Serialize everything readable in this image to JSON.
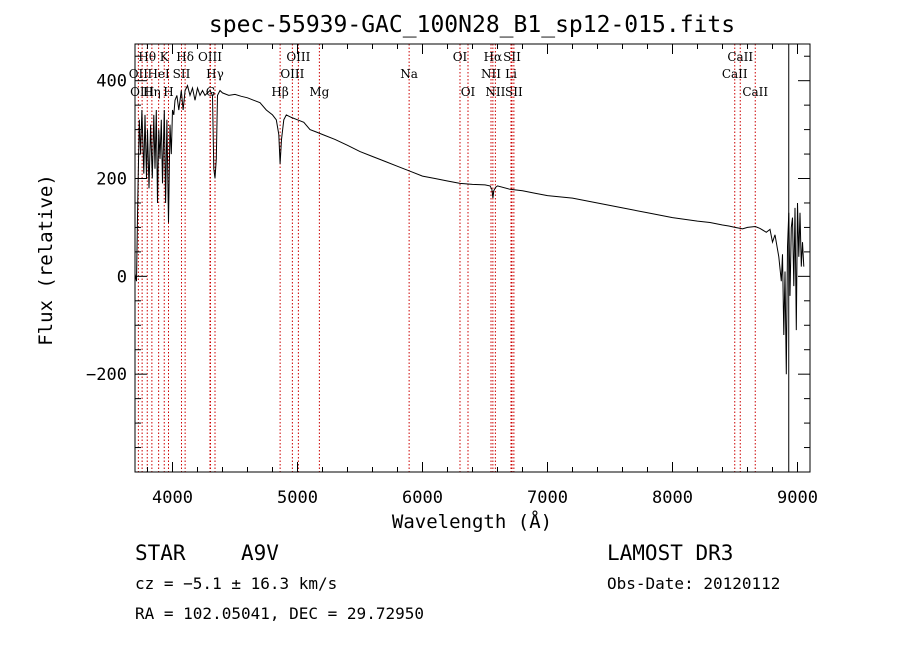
{
  "chart_data": {
    "type": "line",
    "title": "spec-55939-GAC_100N28_B1_sp12-015.fits",
    "xlabel": "Wavelength (Å)",
    "ylabel": "Flux (relative)",
    "xlim": [
      3700,
      9100
    ],
    "ylim": [
      -400,
      475
    ],
    "x_ticks": [
      4000,
      5000,
      6000,
      7000,
      8000,
      9000
    ],
    "x_tick_labels": [
      "4000",
      "5000",
      "6000",
      "7000",
      "8000",
      "9000"
    ],
    "y_ticks": [
      -200,
      0,
      200,
      400
    ],
    "y_tick_labels": [
      "−200",
      "0",
      "200",
      "400"
    ],
    "reference_line_wavelength": 8930,
    "series": [
      {
        "name": "flux",
        "x": [
          3700,
          3712,
          3722,
          3734,
          3745,
          3755,
          3770,
          3780,
          3792,
          3800,
          3812,
          3825,
          3838,
          3850,
          3860,
          3870,
          3880,
          3890,
          3900,
          3910,
          3920,
          3934,
          3945,
          3955,
          3968,
          3980,
          3990,
          4000,
          4010,
          4020,
          4035,
          4050,
          4070,
          4085,
          4101,
          4120,
          4140,
          4160,
          4180,
          4200,
          4220,
          4240,
          4260,
          4280,
          4300,
          4320,
          4330,
          4340,
          4350,
          4360,
          4380,
          4400,
          4450,
          4500,
          4550,
          4600,
          4650,
          4700,
          4750,
          4800,
          4830,
          4850,
          4861,
          4872,
          4890,
          4910,
          4950,
          5000,
          5050,
          5100,
          5150,
          5200,
          5300,
          5400,
          5500,
          5600,
          5700,
          5800,
          5900,
          6000,
          6100,
          6200,
          6300,
          6400,
          6500,
          6540,
          6555,
          6563,
          6570,
          6585,
          6600,
          6700,
          6800,
          6900,
          7000,
          7200,
          7400,
          7600,
          7800,
          8000,
          8200,
          8300,
          8400,
          8450,
          8500,
          8542,
          8560,
          8600,
          8662,
          8700,
          8750,
          8780,
          8800,
          8820,
          8850,
          8870,
          8880,
          8890,
          8900,
          8910,
          8920,
          8930,
          8940,
          8950,
          8960,
          8970,
          8980,
          8990,
          9000,
          9010,
          9020,
          9030,
          9040,
          9050
        ],
        "values": [
          5,
          -10,
          160,
          320,
          250,
          340,
          210,
          330,
          200,
          300,
          180,
          310,
          200,
          330,
          220,
          340,
          150,
          300,
          240,
          320,
          190,
          340,
          150,
          320,
          110,
          310,
          250,
          340,
          330,
          360,
          370,
          340,
          380,
          340,
          380,
          390,
          370,
          385,
          360,
          385,
          370,
          380,
          370,
          375,
          380,
          370,
          220,
          200,
          240,
          370,
          380,
          375,
          370,
          372,
          368,
          365,
          360,
          355,
          340,
          330,
          320,
          290,
          230,
          280,
          320,
          330,
          325,
          320,
          315,
          300,
          295,
          290,
          280,
          268,
          255,
          245,
          235,
          225,
          215,
          205,
          200,
          195,
          190,
          188,
          187,
          185,
          178,
          160,
          175,
          182,
          185,
          178,
          175,
          170,
          165,
          160,
          150,
          140,
          130,
          120,
          113,
          110,
          105,
          103,
          100,
          98,
          97,
          100,
          102,
          98,
          90,
          96,
          70,
          85,
          40,
          -10,
          45,
          -120,
          10,
          -200,
          60,
          130,
          -40,
          100,
          120,
          -20,
          140,
          -110,
          150,
          40,
          130,
          20,
          70,
          20
        ]
      }
    ],
    "line_markers": [
      {
        "name": "Hθ",
        "wavelength": 3798,
        "row": 1
      },
      {
        "name": "OII",
        "wavelength": 3727,
        "row": 2
      },
      {
        "name": "OIII",
        "wavelength": 3757,
        "row": 3
      },
      {
        "name": "Hη",
        "wavelength": 3835,
        "row": 3
      },
      {
        "name": "HeI",
        "wavelength": 3889,
        "row": 2
      },
      {
        "name": "K",
        "wavelength": 3934,
        "row": 1
      },
      {
        "name": "H",
        "wavelength": 3968,
        "row": 3
      },
      {
        "name": "SII",
        "wavelength": 4072,
        "row": 2
      },
      {
        "name": "Hδ",
        "wavelength": 4101,
        "row": 1
      },
      {
        "name": "OIII",
        "wavelength": 4300,
        "row": 1
      },
      {
        "name": "G",
        "wavelength": 4304,
        "row": 3
      },
      {
        "name": "Hγ",
        "wavelength": 4340,
        "row": 2
      },
      {
        "name": "Hβ",
        "wavelength": 4861,
        "row": 3
      },
      {
        "name": "OIII",
        "wavelength": 4959,
        "row": 2
      },
      {
        "name": "OIII",
        "wavelength": 5007,
        "row": 1
      },
      {
        "name": "Mg",
        "wavelength": 5175,
        "row": 3
      },
      {
        "name": "Na",
        "wavelength": 5893,
        "row": 2
      },
      {
        "name": "OI",
        "wavelength": 6300,
        "row": 1
      },
      {
        "name": "OI",
        "wavelength": 6364,
        "row": 3
      },
      {
        "name": "NII",
        "wavelength": 6548,
        "row": 2
      },
      {
        "name": "Hα",
        "wavelength": 6563,
        "row": 1
      },
      {
        "name": "NII",
        "wavelength": 6583,
        "row": 3
      },
      {
        "name": "Li",
        "wavelength": 6708,
        "row": 2
      },
      {
        "name": "SII",
        "wavelength": 6716,
        "row": 1
      },
      {
        "name": "SII",
        "wavelength": 6731,
        "row": 3
      },
      {
        "name": "CaII",
        "wavelength": 8498,
        "row": 2
      },
      {
        "name": "CaII",
        "wavelength": 8542,
        "row": 1
      },
      {
        "name": "CaII",
        "wavelength": 8662,
        "row": 3
      }
    ]
  },
  "info": {
    "class": "STAR",
    "subclass": "A9V",
    "survey": "LAMOST DR3",
    "cz": "cz = −5.1 ± 16.3 km/s",
    "obs_date": "Obs-Date: 20120112",
    "radec": "RA = 102.05041, DEC =  29.72950"
  },
  "colors": {
    "axis": "#000000",
    "spectrum": "#000000",
    "marker": "#cc0000"
  }
}
